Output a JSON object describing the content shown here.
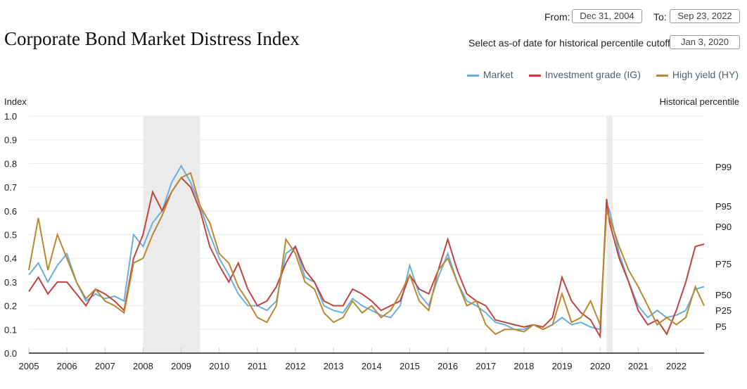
{
  "title": "Corporate Bond Market Distress Index",
  "controls": {
    "from_label": "From:",
    "from_value": "Dec 31, 2004",
    "to_label": "To:",
    "to_value": "Sep 23, 2022",
    "asof_label": "Select as-of date for historical percentile cutoffs:",
    "asof_value": "Jan 3, 2020"
  },
  "chart_data": {
    "type": "line",
    "ylabel": "Index",
    "y2label": "Historical percentile",
    "ylim": [
      0,
      1
    ],
    "xlim": [
      2005,
      2022.73
    ],
    "yticks": [
      "0.0",
      "0.1",
      "0.2",
      "0.3",
      "0.4",
      "0.5",
      "0.6",
      "0.7",
      "0.8",
      "0.9",
      "1.0"
    ],
    "xticks": [
      "2005",
      "2006",
      "2007",
      "2008",
      "2009",
      "2010",
      "2011",
      "2012",
      "2013",
      "2014",
      "2015",
      "2016",
      "2017",
      "2018",
      "2019",
      "2020",
      "2021",
      "2022"
    ],
    "grid": true,
    "legend_placement": "top-right",
    "shaded_periods": [
      [
        2008.0,
        2009.5
      ],
      [
        2020.17,
        2020.33
      ]
    ],
    "percentiles": [
      {
        "label": "P99",
        "value": 0.786
      },
      {
        "label": "P95",
        "value": 0.62
      },
      {
        "label": "P90",
        "value": 0.534
      },
      {
        "label": "P75",
        "value": 0.377
      },
      {
        "label": "P50",
        "value": 0.246
      },
      {
        "label": "P25",
        "value": 0.181
      },
      {
        "label": "P5",
        "value": 0.113
      }
    ],
    "x": [
      2005.0,
      2005.25,
      2005.5,
      2005.75,
      2006.0,
      2006.25,
      2006.5,
      2006.75,
      2007.0,
      2007.25,
      2007.5,
      2007.75,
      2008.0,
      2008.25,
      2008.5,
      2008.75,
      2009.0,
      2009.25,
      2009.5,
      2009.75,
      2010.0,
      2010.25,
      2010.5,
      2010.75,
      2011.0,
      2011.25,
      2011.5,
      2011.75,
      2012.0,
      2012.25,
      2012.5,
      2012.75,
      2013.0,
      2013.25,
      2013.5,
      2013.75,
      2014.0,
      2014.25,
      2014.5,
      2014.75,
      2015.0,
      2015.25,
      2015.5,
      2015.75,
      2016.0,
      2016.25,
      2016.5,
      2016.75,
      2017.0,
      2017.25,
      2017.5,
      2017.75,
      2018.0,
      2018.25,
      2018.5,
      2018.75,
      2019.0,
      2019.25,
      2019.5,
      2019.75,
      2020.0,
      2020.17,
      2020.25,
      2020.5,
      2020.75,
      2021.0,
      2021.25,
      2021.5,
      2021.75,
      2022.0,
      2022.25,
      2022.5,
      2022.73
    ],
    "series": [
      {
        "name": "Market",
        "color": "#6aaee0",
        "values": [
          0.33,
          0.38,
          0.3,
          0.37,
          0.42,
          0.3,
          0.22,
          0.25,
          0.23,
          0.24,
          0.22,
          0.5,
          0.45,
          0.55,
          0.6,
          0.72,
          0.79,
          0.72,
          0.62,
          0.5,
          0.4,
          0.33,
          0.25,
          0.2,
          0.2,
          0.18,
          0.22,
          0.42,
          0.45,
          0.32,
          0.3,
          0.2,
          0.18,
          0.17,
          0.23,
          0.2,
          0.18,
          0.16,
          0.15,
          0.2,
          0.37,
          0.25,
          0.2,
          0.32,
          0.42,
          0.3,
          0.22,
          0.2,
          0.17,
          0.13,
          0.12,
          0.1,
          0.1,
          0.12,
          0.1,
          0.12,
          0.15,
          0.12,
          0.13,
          0.11,
          0.1,
          0.63,
          0.6,
          0.42,
          0.3,
          0.2,
          0.15,
          0.18,
          0.15,
          0.16,
          0.18,
          0.27,
          0.28
        ]
      },
      {
        "name": "Investment grade (IG)",
        "color": "#c0433f",
        "values": [
          0.26,
          0.32,
          0.25,
          0.3,
          0.3,
          0.25,
          0.2,
          0.27,
          0.25,
          0.22,
          0.18,
          0.4,
          0.5,
          0.68,
          0.6,
          0.68,
          0.74,
          0.7,
          0.6,
          0.45,
          0.37,
          0.3,
          0.38,
          0.27,
          0.2,
          0.22,
          0.28,
          0.38,
          0.45,
          0.35,
          0.3,
          0.22,
          0.2,
          0.2,
          0.27,
          0.25,
          0.22,
          0.18,
          0.2,
          0.22,
          0.33,
          0.27,
          0.25,
          0.35,
          0.48,
          0.35,
          0.25,
          0.22,
          0.2,
          0.14,
          0.13,
          0.12,
          0.11,
          0.12,
          0.11,
          0.15,
          0.32,
          0.22,
          0.17,
          0.14,
          0.07,
          0.65,
          0.55,
          0.4,
          0.3,
          0.18,
          0.12,
          0.14,
          0.08,
          0.18,
          0.3,
          0.45,
          0.46
        ]
      },
      {
        "name": "High yield (HY)",
        "color": "#b8892f",
        "values": [
          0.35,
          0.57,
          0.35,
          0.5,
          0.4,
          0.3,
          0.23,
          0.27,
          0.22,
          0.2,
          0.17,
          0.38,
          0.4,
          0.5,
          0.58,
          0.68,
          0.74,
          0.76,
          0.62,
          0.55,
          0.42,
          0.38,
          0.28,
          0.22,
          0.15,
          0.13,
          0.2,
          0.48,
          0.42,
          0.3,
          0.27,
          0.17,
          0.13,
          0.15,
          0.22,
          0.17,
          0.2,
          0.15,
          0.18,
          0.25,
          0.33,
          0.22,
          0.18,
          0.35,
          0.4,
          0.3,
          0.2,
          0.22,
          0.12,
          0.08,
          0.1,
          0.1,
          0.09,
          0.12,
          0.1,
          0.12,
          0.25,
          0.13,
          0.15,
          0.22,
          0.12,
          0.6,
          0.57,
          0.45,
          0.35,
          0.28,
          0.2,
          0.12,
          0.15,
          0.12,
          0.15,
          0.28,
          0.2
        ]
      }
    ]
  }
}
